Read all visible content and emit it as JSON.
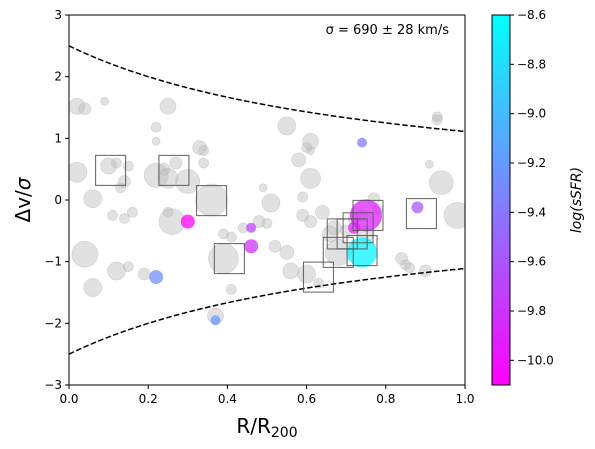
{
  "chart_data": {
    "type": "scatter",
    "xlabel_main": "R/R",
    "xlabel_sub": "200",
    "ylabel_main": "Δv/",
    "ylabel_sym": "σ",
    "annotation": "σ = 690 ± 28 km/s",
    "colorbar_label": "log(sSFR)",
    "xlim": [
      0.0,
      1.0
    ],
    "ylim": [
      -3,
      3
    ],
    "x_ticks": [
      "0.0",
      "0.2",
      "0.4",
      "0.6",
      "0.8",
      "1.0"
    ],
    "y_ticks": [
      "−3",
      "−2",
      "−1",
      "0",
      "1",
      "2",
      "3"
    ],
    "colorbar_range": [
      -10.1,
      -8.6
    ],
    "colorbar_ticks": [
      "−8.6",
      "−8.8",
      "−9.0",
      "−9.2",
      "−9.4",
      "−9.6",
      "−9.8",
      "−10.0"
    ],
    "colormap": [
      "#ff00ff",
      "#00ffff"
    ],
    "caustic": "±2.5/(1 + 1.25·R)",
    "grey_points": [
      [
        0.02,
        1.52,
        8
      ],
      [
        0.04,
        1.48,
        6
      ],
      [
        0.09,
        1.6,
        4
      ],
      [
        0.25,
        1.52,
        8
      ],
      [
        0.22,
        1.18,
        5
      ],
      [
        0.02,
        0.45,
        10
      ],
      [
        0.06,
        0.02,
        9
      ],
      [
        0.04,
        -0.88,
        13
      ],
      [
        0.06,
        -1.42,
        9
      ],
      [
        0.1,
        0.55,
        8
      ],
      [
        0.12,
        0.6,
        5
      ],
      [
        0.14,
        0.3,
        6
      ],
      [
        0.15,
        0.55,
        5
      ],
      [
        0.13,
        0.2,
        5
      ],
      [
        0.11,
        -0.25,
        5
      ],
      [
        0.14,
        -0.3,
        5
      ],
      [
        0.16,
        -0.2,
        5
      ],
      [
        0.12,
        -1.15,
        9
      ],
      [
        0.15,
        -1.08,
        5
      ],
      [
        0.19,
        -1.2,
        6
      ],
      [
        0.22,
        0.95,
        4
      ],
      [
        0.24,
        0.5,
        6
      ],
      [
        0.22,
        0.4,
        12
      ],
      [
        0.25,
        0.35,
        10
      ],
      [
        0.27,
        0.6,
        6
      ],
      [
        0.3,
        0.3,
        12
      ],
      [
        0.25,
        -0.2,
        5
      ],
      [
        0.26,
        -0.35,
        13
      ],
      [
        0.33,
        0.85,
        7
      ],
      [
        0.34,
        0.8,
        5
      ],
      [
        0.34,
        0.6,
        5
      ],
      [
        0.36,
        0.0,
        16
      ],
      [
        0.39,
        -0.55,
        5
      ],
      [
        0.41,
        -0.6,
        5
      ],
      [
        0.39,
        -0.95,
        15
      ],
      [
        0.41,
        -1.45,
        5
      ],
      [
        0.37,
        -1.88,
        8
      ],
      [
        0.44,
        -0.45,
        5
      ],
      [
        0.48,
        -0.35,
        6
      ],
      [
        0.49,
        0.2,
        4
      ],
      [
        0.51,
        -0.05,
        9
      ],
      [
        0.5,
        -0.38,
        5
      ],
      [
        0.52,
        -0.75,
        6
      ],
      [
        0.55,
        -0.85,
        7
      ],
      [
        0.56,
        -1.15,
        8
      ],
      [
        0.55,
        1.2,
        9
      ],
      [
        0.58,
        0.65,
        7
      ],
      [
        0.6,
        0.85,
        5
      ],
      [
        0.61,
        0.8,
        4
      ],
      [
        0.61,
        0.95,
        8
      ],
      [
        0.59,
        0.05,
        5
      ],
      [
        0.59,
        -0.25,
        6
      ],
      [
        0.61,
        -0.35,
        6
      ],
      [
        0.6,
        -1.2,
        9
      ],
      [
        0.63,
        -1.35,
        5
      ],
      [
        0.61,
        0.35,
        10
      ],
      [
        0.64,
        -0.2,
        7
      ],
      [
        0.66,
        -0.55,
        8
      ],
      [
        0.67,
        -0.45,
        7
      ],
      [
        0.68,
        -0.85,
        13
      ],
      [
        0.7,
        -0.5,
        6
      ],
      [
        0.72,
        -0.3,
        6
      ],
      [
        0.74,
        -0.25,
        6
      ],
      [
        0.75,
        -0.55,
        8
      ],
      [
        0.77,
        0.02,
        6
      ],
      [
        0.78,
        -0.15,
        5
      ],
      [
        0.85,
        -1.05,
        5
      ],
      [
        0.84,
        -0.95,
        6
      ],
      [
        0.86,
        -1.1,
        5
      ],
      [
        0.9,
        -1.15,
        6
      ],
      [
        0.91,
        0.58,
        4
      ],
      [
        0.93,
        1.35,
        5
      ],
      [
        0.93,
        1.3,
        5
      ],
      [
        0.94,
        0.28,
        12
      ],
      [
        0.98,
        -0.25,
        13
      ]
    ],
    "colored_points": [
      [
        0.3,
        -0.35,
        -10.1,
        7
      ],
      [
        0.22,
        -1.25,
        -9.25,
        7
      ],
      [
        0.37,
        -1.95,
        -9.2,
        5
      ],
      [
        0.46,
        -0.45,
        -9.7,
        5
      ],
      [
        0.46,
        -0.75,
        -9.8,
        7
      ],
      [
        0.72,
        -0.45,
        -9.95,
        6
      ],
      [
        0.75,
        -0.25,
        -9.9,
        16
      ],
      [
        0.74,
        -0.85,
        -8.65,
        15
      ],
      [
        0.74,
        0.93,
        -9.35,
        5
      ],
      [
        0.88,
        -0.12,
        -9.55,
        6
      ]
    ],
    "squares": [
      [
        0.105,
        0.48
      ],
      [
        0.265,
        0.48
      ],
      [
        0.36,
        -0.01
      ],
      [
        0.405,
        -0.95
      ],
      [
        0.63,
        -1.25
      ],
      [
        0.69,
        -0.55
      ],
      [
        0.68,
        -0.85
      ],
      [
        0.73,
        -0.45
      ],
      [
        0.715,
        -0.55
      ],
      [
        0.755,
        -0.25
      ],
      [
        0.74,
        -0.82
      ],
      [
        0.89,
        -0.22
      ]
    ]
  }
}
